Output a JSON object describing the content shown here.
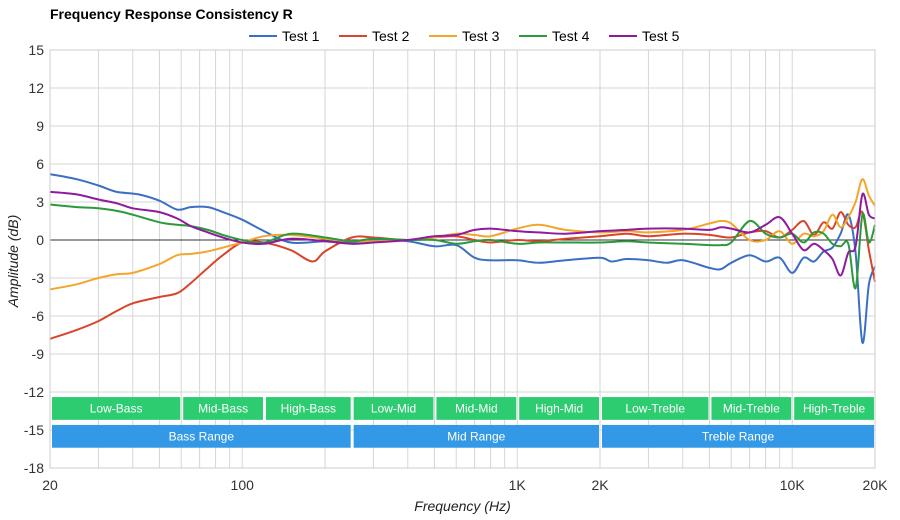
{
  "chart_data": {
    "type": "line",
    "title": "Frequency Response Consistency R",
    "xlabel": "Frequency (Hz)",
    "ylabel": "Amplitude (dB)",
    "x_scale": "log",
    "xlim": [
      20,
      20000
    ],
    "ylim": [
      -18,
      15
    ],
    "x_ticks": [
      {
        "value": 20,
        "label": "20"
      },
      {
        "value": 100,
        "label": "100"
      },
      {
        "value": 1000,
        "label": "1K"
      },
      {
        "value": 2000,
        "label": "2K"
      },
      {
        "value": 10000,
        "label": "10K"
      },
      {
        "value": 20000,
        "label": "20K"
      }
    ],
    "y_ticks": [
      {
        "value": 15,
        "label": "15"
      },
      {
        "value": 12,
        "label": "12"
      },
      {
        "value": 9,
        "label": "9"
      },
      {
        "value": 6,
        "label": "6"
      },
      {
        "value": 3,
        "label": "3"
      },
      {
        "value": 0,
        "label": "0"
      },
      {
        "value": -3,
        "label": "-3"
      },
      {
        "value": -6,
        "label": "-6"
      },
      {
        "value": -9,
        "label": "-9"
      },
      {
        "value": -12,
        "label": "-12"
      },
      {
        "value": -15,
        "label": "-15"
      },
      {
        "value": -18,
        "label": "-18"
      }
    ],
    "grid": true,
    "legend_position": "top-center",
    "bands": [
      {
        "label": "Low-Bass",
        "x0": 20,
        "x1": 60,
        "row": 1,
        "color": "#2ecc71"
      },
      {
        "label": "Mid-Bass",
        "x0": 60,
        "x1": 120,
        "row": 1,
        "color": "#2ecc71"
      },
      {
        "label": "High-Bass",
        "x0": 120,
        "x1": 250,
        "row": 1,
        "color": "#2ecc71"
      },
      {
        "label": "Low-Mid",
        "x0": 250,
        "x1": 500,
        "row": 1,
        "color": "#2ecc71"
      },
      {
        "label": "Mid-Mid",
        "x0": 500,
        "x1": 1000,
        "row": 1,
        "color": "#2ecc71"
      },
      {
        "label": "High-Mid",
        "x0": 1000,
        "x1": 2000,
        "row": 1,
        "color": "#2ecc71"
      },
      {
        "label": "Low-Treble",
        "x0": 2000,
        "x1": 5000,
        "row": 1,
        "color": "#2ecc71"
      },
      {
        "label": "Mid-Treble",
        "x0": 5000,
        "x1": 10000,
        "row": 1,
        "color": "#2ecc71"
      },
      {
        "label": "High-Treble",
        "x0": 10000,
        "x1": 20000,
        "row": 1,
        "color": "#2ecc71"
      },
      {
        "label": "Bass Range",
        "x0": 20,
        "x1": 250,
        "row": 2,
        "color": "#3399e6"
      },
      {
        "label": "Mid Range",
        "x0": 250,
        "x1": 2000,
        "row": 2,
        "color": "#3399e6"
      },
      {
        "label": "Treble Range",
        "x0": 2000,
        "x1": 20000,
        "row": 2,
        "color": "#3399e6"
      }
    ],
    "series": [
      {
        "name": "Test 1",
        "color": "#3a6fc4",
        "x": [
          20,
          25,
          30,
          35,
          42,
          50,
          58,
          65,
          75,
          85,
          100,
          120,
          150,
          200,
          250,
          300,
          400,
          500,
          600,
          700,
          800,
          1000,
          1200,
          1500,
          2000,
          2200,
          2500,
          3000,
          3500,
          4000,
          5000,
          5500,
          6000,
          7000,
          8000,
          9000,
          10000,
          11000,
          12000,
          13000,
          14000,
          15000,
          16000,
          17000,
          18000,
          19000,
          20000
        ],
        "y": [
          5.2,
          4.8,
          4.3,
          3.8,
          3.6,
          3.1,
          2.4,
          2.6,
          2.6,
          2.2,
          1.6,
          0.7,
          -0.2,
          -0.1,
          -0.2,
          0.0,
          -0.1,
          -0.5,
          -0.4,
          -1.4,
          -1.6,
          -1.6,
          -1.8,
          -1.6,
          -1.4,
          -1.7,
          -1.5,
          -1.6,
          -1.8,
          -1.6,
          -2.2,
          -2.3,
          -1.8,
          -1.2,
          -1.7,
          -1.4,
          -2.6,
          -1.4,
          -1.7,
          -0.9,
          -0.6,
          0.5,
          2.0,
          -1.0,
          -8.1,
          -3.5,
          -2.1
        ]
      },
      {
        "name": "Test 2",
        "color": "#d9452b",
        "x": [
          20,
          25,
          30,
          35,
          40,
          50,
          58,
          65,
          75,
          85,
          100,
          120,
          150,
          180,
          200,
          250,
          300,
          400,
          500,
          600,
          700,
          800,
          1000,
          1200,
          1500,
          2000,
          2500,
          3000,
          4000,
          5000,
          6000,
          7000,
          8000,
          9000,
          10000,
          11000,
          12000,
          13000,
          14000,
          15000,
          16000,
          17000,
          18000,
          19000,
          20000
        ],
        "y": [
          -7.8,
          -7.1,
          -6.4,
          -5.6,
          -5.0,
          -4.5,
          -4.2,
          -3.4,
          -2.2,
          -1.2,
          -0.2,
          -0.2,
          -0.8,
          -1.7,
          -0.9,
          0.2,
          0.2,
          0.0,
          0.2,
          0.3,
          0.0,
          -0.2,
          0.0,
          -0.1,
          0.1,
          0.3,
          0.5,
          0.3,
          0.5,
          0.4,
          0.2,
          0.6,
          0.7,
          0.2,
          0.8,
          1.5,
          0.4,
          1.4,
          0.9,
          2.2,
          1.2,
          1.0,
          2.2,
          -0.8,
          -3.3
        ]
      },
      {
        "name": "Test 3",
        "color": "#f4a52c",
        "x": [
          20,
          25,
          30,
          35,
          40,
          50,
          58,
          65,
          75,
          85,
          100,
          120,
          150,
          200,
          250,
          300,
          400,
          500,
          600,
          700,
          800,
          1000,
          1200,
          1500,
          2000,
          2500,
          3000,
          4000,
          5000,
          5500,
          6000,
          7000,
          8000,
          9000,
          10000,
          11000,
          12000,
          13000,
          14000,
          15000,
          16000,
          17000,
          18000,
          19000,
          20000
        ],
        "y": [
          -3.9,
          -3.5,
          -3.0,
          -2.7,
          -2.6,
          -1.9,
          -1.2,
          -1.1,
          -0.9,
          -0.6,
          -0.2,
          0.3,
          0.4,
          0.1,
          -0.1,
          -0.1,
          0.0,
          0.2,
          0.5,
          0.4,
          0.3,
          0.9,
          1.2,
          0.8,
          0.6,
          0.7,
          0.6,
          0.8,
          1.3,
          1.5,
          1.3,
          0.0,
          0.0,
          0.7,
          -0.3,
          0.5,
          0.3,
          0.7,
          2.0,
          1.0,
          1.8,
          3.0,
          4.8,
          3.5,
          2.7
        ]
      },
      {
        "name": "Test 4",
        "color": "#2a9a3a",
        "x": [
          20,
          25,
          30,
          35,
          40,
          50,
          58,
          65,
          75,
          85,
          100,
          120,
          150,
          200,
          250,
          300,
          400,
          500,
          600,
          700,
          800,
          1000,
          1200,
          1500,
          2000,
          2500,
          3000,
          4000,
          5000,
          5500,
          6000,
          7000,
          8000,
          9000,
          10000,
          11000,
          12000,
          13000,
          14000,
          15000,
          16000,
          17000,
          18000,
          19000,
          20000
        ],
        "y": [
          2.8,
          2.6,
          2.5,
          2.3,
          2.0,
          1.4,
          1.2,
          1.1,
          0.8,
          0.4,
          0.0,
          -0.2,
          0.5,
          0.2,
          -0.1,
          0.1,
          0.0,
          0.0,
          -0.3,
          -0.1,
          0.0,
          -0.3,
          -0.2,
          -0.2,
          -0.2,
          -0.1,
          -0.2,
          -0.3,
          -0.4,
          -0.4,
          -0.2,
          1.5,
          0.5,
          0.2,
          0.5,
          -0.2,
          0.6,
          0.5,
          -0.3,
          -0.5,
          -0.3,
          -3.8,
          2.0,
          -0.2,
          1.2
        ]
      },
      {
        "name": "Test 5",
        "color": "#8e1a9e",
        "x": [
          20,
          25,
          30,
          35,
          40,
          50,
          58,
          65,
          75,
          85,
          100,
          120,
          150,
          200,
          250,
          300,
          400,
          500,
          600,
          700,
          800,
          1000,
          1200,
          1500,
          2000,
          2500,
          3000,
          4000,
          5000,
          5500,
          6000,
          7000,
          8000,
          9000,
          10000,
          11000,
          12000,
          13000,
          14000,
          15000,
          16000,
          17000,
          18000,
          19000,
          20000
        ],
        "y": [
          3.8,
          3.6,
          3.2,
          2.9,
          2.5,
          2.2,
          1.7,
          1.1,
          0.6,
          0.2,
          -0.2,
          -0.3,
          0.1,
          -0.1,
          -0.3,
          -0.2,
          0.0,
          0.3,
          0.4,
          0.8,
          0.9,
          0.7,
          0.6,
          0.5,
          0.7,
          0.8,
          0.9,
          0.9,
          0.8,
          1.0,
          0.9,
          0.6,
          1.2,
          1.8,
          0.5,
          -0.8,
          -0.3,
          -0.8,
          -1.5,
          -2.8,
          -1.0,
          -0.5,
          3.6,
          2.0,
          1.7
        ]
      }
    ]
  }
}
